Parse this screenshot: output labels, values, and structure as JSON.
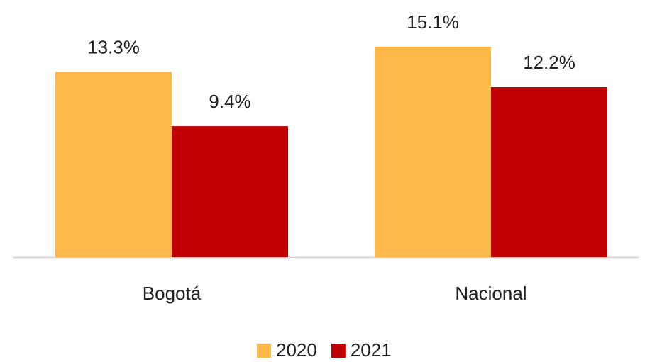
{
  "chart_data": {
    "type": "bar",
    "categories": [
      "Bogotá",
      "Nacional"
    ],
    "series": [
      {
        "name": "2020",
        "color": "#fdb94a",
        "values": [
          13.3,
          15.1
        ],
        "value_labels": [
          "13.3%",
          "15.1%"
        ]
      },
      {
        "name": "2021",
        "color": "#c00000",
        "values": [
          9.4,
          12.2
        ],
        "value_labels": [
          "9.4%",
          "12.2%"
        ]
      }
    ],
    "legend": "bottom"
  }
}
